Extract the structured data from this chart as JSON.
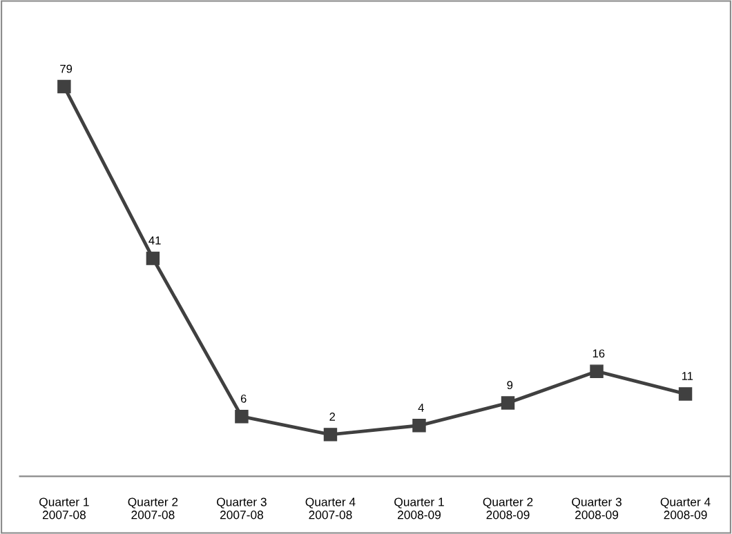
{
  "chart_data": {
    "type": "line",
    "categories": [
      "Quarter 1\n2007-08",
      "Quarter 2\n2007-08",
      "Quarter 3\n2007-08",
      "Quarter 4\n2007-08",
      "Quarter 1\n2008-09",
      "Quarter 2\n2008-09",
      "Quarter 3\n2008-09",
      "Quarter 4\n2008-09"
    ],
    "values": [
      79,
      41,
      6,
      2,
      4,
      9,
      16,
      11
    ],
    "color": "#404040",
    "tick_labels": "x",
    "marker": "square",
    "line_style": "solid",
    "data_labels": true,
    "grid": false,
    "legend": false
  }
}
